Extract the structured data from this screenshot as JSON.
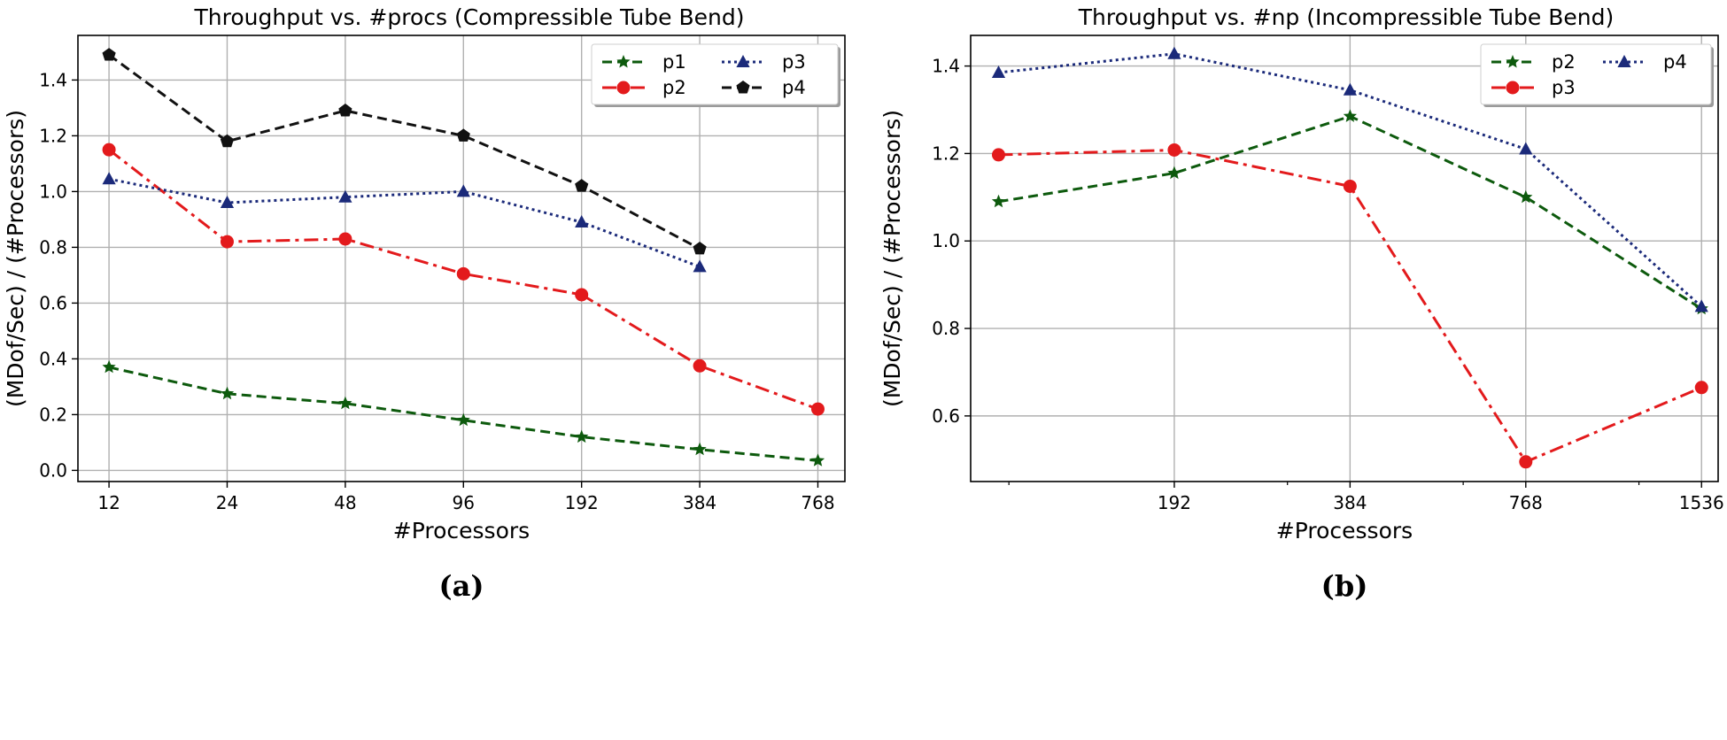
{
  "chart_data": [
    {
      "type": "line",
      "title": "Throughput vs. #procs (Compressible Tube Bend)",
      "xlabel": "#Processors",
      "ylabel": "(MDof/Sec) / (#Processors)",
      "panel_label": "(a)",
      "x_scale": "log2",
      "x_ticks": [
        12,
        24,
        48,
        96,
        192,
        384,
        768
      ],
      "x_tick_labels": [
        "12",
        "24",
        "48",
        "96",
        "192",
        "384",
        "768"
      ],
      "xlim": [
        10,
        900
      ],
      "y_ticks": [
        0.0,
        0.2,
        0.4,
        0.6,
        0.8,
        1.0,
        1.2,
        1.4
      ],
      "y_tick_labels": [
        "0.0",
        "0.2",
        "0.4",
        "0.6",
        "0.8",
        "1.0",
        "1.2",
        "1.4"
      ],
      "ylim": [
        -0.04,
        1.56
      ],
      "grid": true,
      "legend_position": "top-right",
      "legend_columns": 2,
      "series": [
        {
          "name": "p1",
          "color": "#0d5a0d",
          "dash": "dashed",
          "marker": "star",
          "x": [
            12,
            24,
            48,
            96,
            192,
            384,
            768
          ],
          "values": [
            0.37,
            0.275,
            0.24,
            0.18,
            0.12,
            0.075,
            0.035
          ]
        },
        {
          "name": "p2",
          "color": "#e31a1c",
          "dash": "dashdot",
          "marker": "circle",
          "x": [
            12,
            24,
            48,
            96,
            192,
            384,
            768
          ],
          "values": [
            1.15,
            0.82,
            0.83,
            0.705,
            0.63,
            0.375,
            0.22
          ]
        },
        {
          "name": "p3",
          "color": "#1b2a7a",
          "dash": "dotted",
          "marker": "triangle",
          "x": [
            12,
            24,
            48,
            96,
            192,
            384
          ],
          "values": [
            1.045,
            0.96,
            0.98,
            1.0,
            0.89,
            0.73
          ]
        },
        {
          "name": "p4",
          "color": "#111111",
          "dash": "dashed",
          "marker": "pentagon",
          "x": [
            12,
            24,
            48,
            96,
            192,
            384
          ],
          "values": [
            1.49,
            1.18,
            1.29,
            1.2,
            1.02,
            0.795
          ]
        }
      ]
    },
    {
      "type": "line",
      "title": "Throughput vs. #np (Incompressible Tube Bend)",
      "xlabel": "#Processors",
      "ylabel": "(MDof/Sec) / (#Processors)",
      "panel_label": "(b)",
      "x_scale": "log2",
      "x_ticks": [
        192,
        384,
        768,
        1536
      ],
      "x_tick_labels": [
        "192",
        "384",
        "768",
        "1536"
      ],
      "x_minor_ticks": [
        100,
        300,
        600,
        1200
      ],
      "xlim": [
        86,
        1640
      ],
      "y_ticks": [
        0.6,
        0.8,
        1.0,
        1.2,
        1.4
      ],
      "y_tick_labels": [
        "0.6",
        "0.8",
        "1.0",
        "1.2",
        "1.4"
      ],
      "ylim": [
        0.45,
        1.47
      ],
      "grid": true,
      "legend_position": "top-right",
      "legend_columns": 2,
      "series": [
        {
          "name": "p2",
          "color": "#0d5a0d",
          "dash": "dashed",
          "marker": "star",
          "x": [
            96,
            192,
            384,
            768,
            1536
          ],
          "values": [
            1.09,
            1.155,
            1.285,
            1.1,
            0.845
          ]
        },
        {
          "name": "p3",
          "color": "#e31a1c",
          "dash": "dashdot",
          "marker": "circle",
          "x": [
            96,
            192,
            384,
            768,
            1536
          ],
          "values": [
            1.197,
            1.208,
            1.125,
            0.495,
            0.665
          ]
        },
        {
          "name": "p4",
          "color": "#1b2a7a",
          "dash": "dotted",
          "marker": "triangle",
          "x": [
            96,
            192,
            384,
            768,
            1536
          ],
          "values": [
            1.385,
            1.428,
            1.345,
            1.21,
            0.85
          ]
        }
      ]
    }
  ]
}
